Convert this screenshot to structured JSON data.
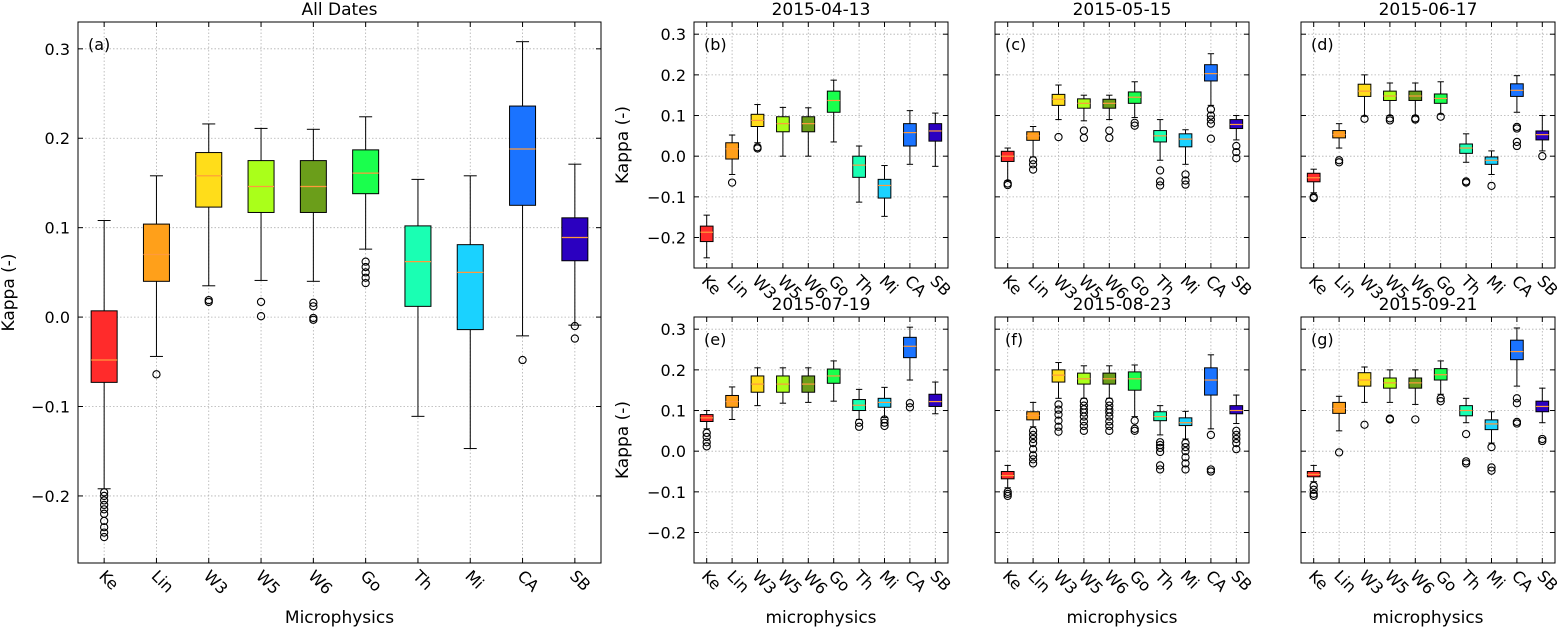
{
  "categories": [
    "Ke",
    "Lin",
    "W3",
    "W5",
    "W6",
    "Go",
    "Th",
    "Mi",
    "CA",
    "SB"
  ],
  "colors": [
    "#ff2b2b",
    "#ffa01a",
    "#ffdd1a",
    "#aaff1a",
    "#6b9e1a",
    "#1aff4d",
    "#1affb3",
    "#1ad2ff",
    "#1a73ff",
    "#2b00c0"
  ],
  "chart_data": [
    {
      "type": "box",
      "panel_label": "(a)",
      "title": "All Dates",
      "xlabel": "Microphysics",
      "ylabel": "Kappa (-)",
      "ylim": [
        -0.275,
        0.33
      ],
      "yticks": [
        "0.3",
        "0.2",
        "0.1",
        "0.0",
        "−0.1",
        "−0.2"
      ],
      "grid": true,
      "boxes": [
        {
          "q1": -0.073,
          "med": -0.048,
          "q3": 0.007,
          "wlo": -0.192,
          "whi": 0.108,
          "out": [
            -0.196,
            -0.2,
            -0.205,
            -0.21,
            -0.215,
            -0.22,
            -0.228,
            -0.235,
            -0.241,
            -0.246
          ]
        },
        {
          "q1": 0.04,
          "med": 0.07,
          "q3": 0.104,
          "wlo": -0.044,
          "whi": 0.158,
          "out": [
            -0.064
          ]
        },
        {
          "q1": 0.123,
          "med": 0.158,
          "q3": 0.184,
          "wlo": 0.035,
          "whi": 0.216,
          "out": [
            0.019,
            0.017
          ]
        },
        {
          "q1": 0.117,
          "med": 0.146,
          "q3": 0.175,
          "wlo": 0.041,
          "whi": 0.211,
          "out": [
            0.017,
            0.001
          ]
        },
        {
          "q1": 0.117,
          "med": 0.146,
          "q3": 0.175,
          "wlo": 0.04,
          "whi": 0.21,
          "out": [
            0.016,
            0.012,
            -0.001,
            -0.003
          ]
        },
        {
          "q1": 0.138,
          "med": 0.161,
          "q3": 0.187,
          "wlo": 0.076,
          "whi": 0.224,
          "out": [
            0.062,
            0.056,
            0.05,
            0.044,
            0.038
          ]
        },
        {
          "q1": 0.012,
          "med": 0.062,
          "q3": 0.102,
          "wlo": -0.111,
          "whi": 0.154,
          "out": []
        },
        {
          "q1": -0.014,
          "med": 0.05,
          "q3": 0.081,
          "wlo": -0.147,
          "whi": 0.158,
          "out": []
        },
        {
          "q1": 0.125,
          "med": 0.188,
          "q3": 0.236,
          "wlo": -0.021,
          "whi": 0.308,
          "out": [
            -0.048
          ]
        },
        {
          "q1": 0.063,
          "med": 0.089,
          "q3": 0.111,
          "wlo": -0.009,
          "whi": 0.171,
          "out": [
            -0.01,
            -0.024
          ]
        }
      ]
    },
    {
      "type": "box",
      "panel_label": "(b)",
      "title": "2015-04-13",
      "xlabel": "",
      "ylabel": "Kappa (-)",
      "ylim": [
        -0.275,
        0.33
      ],
      "yticks": [
        "0.3",
        "0.2",
        "0.1",
        "0.0",
        "−0.1",
        "−0.2"
      ],
      "grid": true,
      "boxes": [
        {
          "q1": -0.21,
          "med": -0.187,
          "q3": -0.172,
          "wlo": -0.25,
          "whi": -0.145,
          "out": []
        },
        {
          "q1": -0.007,
          "med": 0.018,
          "q3": 0.033,
          "wlo": -0.045,
          "whi": 0.052,
          "out": [
            -0.065
          ]
        },
        {
          "q1": 0.073,
          "med": 0.088,
          "q3": 0.103,
          "wlo": 0.033,
          "whi": 0.127,
          "out": [
            0.022,
            0.019
          ]
        },
        {
          "q1": 0.06,
          "med": 0.08,
          "q3": 0.097,
          "wlo": 0.0,
          "whi": 0.12,
          "out": []
        },
        {
          "q1": 0.06,
          "med": 0.08,
          "q3": 0.097,
          "wlo": 0.0,
          "whi": 0.119,
          "out": []
        },
        {
          "q1": 0.108,
          "med": 0.137,
          "q3": 0.16,
          "wlo": 0.035,
          "whi": 0.187,
          "out": []
        },
        {
          "q1": -0.052,
          "med": -0.022,
          "q3": 0.0,
          "wlo": -0.113,
          "whi": 0.025,
          "out": []
        },
        {
          "q1": -0.103,
          "med": -0.072,
          "q3": -0.057,
          "wlo": -0.148,
          "whi": -0.023,
          "out": []
        },
        {
          "q1": 0.025,
          "med": 0.058,
          "q3": 0.08,
          "wlo": -0.02,
          "whi": 0.112,
          "out": []
        },
        {
          "q1": 0.037,
          "med": 0.062,
          "q3": 0.08,
          "wlo": -0.025,
          "whi": 0.106,
          "out": []
        }
      ]
    },
    {
      "type": "box",
      "panel_label": "(c)",
      "title": "2015-05-15",
      "xlabel": "",
      "ylabel": "",
      "ylim": [
        -0.275,
        0.33
      ],
      "yticks": [],
      "grid": true,
      "boxes": [
        {
          "q1": -0.013,
          "med": 0.0,
          "q3": 0.012,
          "wlo": -0.06,
          "whi": 0.02,
          "out": [
            -0.067,
            -0.071
          ]
        },
        {
          "q1": 0.039,
          "med": 0.05,
          "q3": 0.06,
          "wlo": -0.002,
          "whi": 0.073,
          "out": [
            -0.01,
            -0.02,
            -0.033
          ]
        },
        {
          "q1": 0.125,
          "med": 0.14,
          "q3": 0.152,
          "wlo": 0.09,
          "whi": 0.175,
          "out": [
            0.047
          ]
        },
        {
          "q1": 0.118,
          "med": 0.13,
          "q3": 0.141,
          "wlo": 0.087,
          "whi": 0.15,
          "out": [
            0.063,
            0.045
          ]
        },
        {
          "q1": 0.118,
          "med": 0.13,
          "q3": 0.14,
          "wlo": 0.09,
          "whi": 0.15,
          "out": [
            0.063,
            0.045
          ]
        },
        {
          "q1": 0.13,
          "med": 0.145,
          "q3": 0.158,
          "wlo": 0.095,
          "whi": 0.183,
          "out": [
            0.082,
            0.075
          ]
        },
        {
          "q1": 0.035,
          "med": 0.05,
          "q3": 0.063,
          "wlo": -0.01,
          "whi": 0.09,
          "out": [
            -0.035,
            -0.062,
            -0.072
          ]
        },
        {
          "q1": 0.023,
          "med": 0.042,
          "q3": 0.055,
          "wlo": -0.02,
          "whi": 0.065,
          "out": [
            -0.045,
            -0.06,
            -0.07
          ]
        },
        {
          "q1": 0.185,
          "med": 0.203,
          "q3": 0.225,
          "wlo": 0.125,
          "whi": 0.252,
          "out": [
            0.115,
            0.1,
            0.09,
            0.08,
            0.043
          ]
        },
        {
          "q1": 0.068,
          "med": 0.078,
          "q3": 0.09,
          "wlo": 0.04,
          "whi": 0.1,
          "out": [
            0.025,
            0.01,
            -0.005
          ]
        }
      ]
    },
    {
      "type": "box",
      "panel_label": "(d)",
      "title": "2015-06-17",
      "xlabel": "",
      "ylabel": "",
      "ylim": [
        -0.275,
        0.33
      ],
      "yticks": [],
      "grid": true,
      "boxes": [
        {
          "q1": -0.063,
          "med": -0.053,
          "q3": -0.042,
          "wlo": -0.09,
          "whi": -0.032,
          "out": [
            -0.1,
            -0.103
          ]
        },
        {
          "q1": 0.045,
          "med": 0.053,
          "q3": 0.063,
          "wlo": 0.02,
          "whi": 0.08,
          "out": [
            -0.01,
            -0.015
          ]
        },
        {
          "q1": 0.147,
          "med": 0.16,
          "q3": 0.177,
          "wlo": 0.098,
          "whi": 0.2,
          "out": [
            0.092
          ]
        },
        {
          "q1": 0.137,
          "med": 0.148,
          "q3": 0.16,
          "wlo": 0.1,
          "whi": 0.18,
          "out": [
            0.093,
            0.088
          ]
        },
        {
          "q1": 0.137,
          "med": 0.148,
          "q3": 0.16,
          "wlo": 0.1,
          "whi": 0.18,
          "out": [
            0.093,
            0.09
          ]
        },
        {
          "q1": 0.13,
          "med": 0.142,
          "q3": 0.153,
          "wlo": 0.103,
          "whi": 0.183,
          "out": [
            0.097
          ]
        },
        {
          "q1": 0.007,
          "med": 0.02,
          "q3": 0.03,
          "wlo": -0.015,
          "whi": 0.055,
          "out": [
            -0.062,
            -0.065
          ]
        },
        {
          "q1": -0.02,
          "med": -0.01,
          "q3": -0.002,
          "wlo": -0.045,
          "whi": 0.013,
          "out": [
            -0.073
          ]
        },
        {
          "q1": 0.147,
          "med": 0.162,
          "q3": 0.178,
          "wlo": 0.108,
          "whi": 0.198,
          "out": [
            0.072,
            0.068,
            0.035,
            0.025
          ]
        },
        {
          "q1": 0.04,
          "med": 0.053,
          "q3": 0.062,
          "wlo": 0.013,
          "whi": 0.1,
          "out": [
            0.0
          ]
        }
      ]
    },
    {
      "type": "box",
      "panel_label": "(e)",
      "title": "2015-07-19",
      "xlabel": "microphysics",
      "ylabel": "Kappa (-)",
      "ylim": [
        -0.275,
        0.33
      ],
      "yticks": [
        "0.3",
        "0.2",
        "0.1",
        "0.0",
        "−0.1",
        "−0.2"
      ],
      "grid": true,
      "boxes": [
        {
          "q1": 0.073,
          "med": 0.082,
          "q3": 0.09,
          "wlo": 0.055,
          "whi": 0.1,
          "out": [
            0.045,
            0.035,
            0.022,
            0.012
          ]
        },
        {
          "q1": 0.108,
          "med": 0.122,
          "q3": 0.137,
          "wlo": 0.078,
          "whi": 0.158,
          "out": []
        },
        {
          "q1": 0.145,
          "med": 0.165,
          "q3": 0.185,
          "wlo": 0.112,
          "whi": 0.205,
          "out": []
        },
        {
          "q1": 0.145,
          "med": 0.165,
          "q3": 0.185,
          "wlo": 0.118,
          "whi": 0.205,
          "out": []
        },
        {
          "q1": 0.145,
          "med": 0.165,
          "q3": 0.185,
          "wlo": 0.12,
          "whi": 0.205,
          "out": []
        },
        {
          "q1": 0.167,
          "med": 0.185,
          "q3": 0.202,
          "wlo": 0.123,
          "whi": 0.222,
          "out": []
        },
        {
          "q1": 0.1,
          "med": 0.113,
          "q3": 0.127,
          "wlo": 0.078,
          "whi": 0.152,
          "out": [
            0.07,
            0.06
          ]
        },
        {
          "q1": 0.108,
          "med": 0.12,
          "q3": 0.13,
          "wlo": 0.083,
          "whi": 0.157,
          "out": [
            0.078,
            0.07,
            0.062
          ]
        },
        {
          "q1": 0.23,
          "med": 0.258,
          "q3": 0.28,
          "wlo": 0.175,
          "whi": 0.305,
          "out": [
            0.118,
            0.108
          ]
        },
        {
          "q1": 0.11,
          "med": 0.122,
          "q3": 0.14,
          "wlo": 0.092,
          "whi": 0.17,
          "out": []
        }
      ]
    },
    {
      "type": "box",
      "panel_label": "(f)",
      "title": "2015-08-23",
      "xlabel": "microphysics",
      "ylabel": "",
      "ylim": [
        -0.275,
        0.33
      ],
      "yticks": [],
      "grid": true,
      "boxes": [
        {
          "q1": -0.068,
          "med": -0.06,
          "q3": -0.05,
          "wlo": -0.09,
          "whi": -0.035,
          "out": [
            -0.1,
            -0.105,
            -0.11
          ]
        },
        {
          "q1": 0.077,
          "med": 0.088,
          "q3": 0.097,
          "wlo": 0.06,
          "whi": 0.12,
          "out": [
            0.05,
            0.04,
            0.03,
            0.02,
            0.005,
            -0.01,
            -0.02,
            -0.03
          ]
        },
        {
          "q1": 0.17,
          "med": 0.187,
          "q3": 0.2,
          "wlo": 0.13,
          "whi": 0.218,
          "out": [
            0.115,
            0.102,
            0.09,
            0.075,
            0.06,
            0.048
          ]
        },
        {
          "q1": 0.165,
          "med": 0.178,
          "q3": 0.192,
          "wlo": 0.13,
          "whi": 0.21,
          "out": [
            0.122,
            0.112,
            0.103,
            0.095,
            0.085,
            0.073,
            0.062,
            0.05
          ]
        },
        {
          "q1": 0.165,
          "med": 0.178,
          "q3": 0.192,
          "wlo": 0.13,
          "whi": 0.21,
          "out": [
            0.122,
            0.112,
            0.103,
            0.095,
            0.085,
            0.073,
            0.062,
            0.05
          ]
        },
        {
          "q1": 0.15,
          "med": 0.178,
          "q3": 0.195,
          "wlo": 0.085,
          "whi": 0.212,
          "out": [
            0.075,
            0.055,
            0.05
          ]
        },
        {
          "q1": 0.075,
          "med": 0.085,
          "q3": 0.097,
          "wlo": 0.04,
          "whi": 0.112,
          "out": [
            0.022,
            0.015,
            0.008,
            -0.002,
            -0.035,
            -0.045
          ]
        },
        {
          "q1": 0.063,
          "med": 0.07,
          "q3": 0.082,
          "wlo": 0.03,
          "whi": 0.098,
          "out": [
            0.02,
            0.01,
            0.0,
            -0.015,
            -0.03,
            -0.045
          ]
        },
        {
          "q1": 0.138,
          "med": 0.175,
          "q3": 0.205,
          "wlo": 0.055,
          "whi": 0.237,
          "out": [
            0.04,
            -0.045,
            -0.05
          ]
        },
        {
          "q1": 0.092,
          "med": 0.1,
          "q3": 0.112,
          "wlo": 0.068,
          "whi": 0.138,
          "out": [
            0.05,
            0.04,
            0.03,
            0.02,
            0.005
          ]
        }
      ]
    },
    {
      "type": "box",
      "panel_label": "(g)",
      "title": "2015-09-21",
      "xlabel": "microphysics",
      "ylabel": "",
      "ylim": [
        -0.275,
        0.33
      ],
      "yticks": [],
      "grid": true,
      "boxes": [
        {
          "q1": -0.063,
          "med": -0.057,
          "q3": -0.05,
          "wlo": -0.075,
          "whi": -0.035,
          "out": [
            -0.085,
            -0.095,
            -0.105,
            -0.11
          ]
        },
        {
          "q1": 0.093,
          "med": 0.105,
          "q3": 0.12,
          "wlo": 0.05,
          "whi": 0.135,
          "out": [
            -0.003
          ]
        },
        {
          "q1": 0.16,
          "med": 0.175,
          "q3": 0.193,
          "wlo": 0.12,
          "whi": 0.207,
          "out": [
            0.065
          ]
        },
        {
          "q1": 0.155,
          "med": 0.168,
          "q3": 0.18,
          "wlo": 0.12,
          "whi": 0.2,
          "out": [
            0.08,
            0.078
          ]
        },
        {
          "q1": 0.155,
          "med": 0.168,
          "q3": 0.18,
          "wlo": 0.115,
          "whi": 0.2,
          "out": [
            0.078
          ]
        },
        {
          "q1": 0.175,
          "med": 0.188,
          "q3": 0.203,
          "wlo": 0.14,
          "whi": 0.222,
          "out": [
            0.13,
            0.123
          ]
        },
        {
          "q1": 0.087,
          "med": 0.1,
          "q3": 0.112,
          "wlo": 0.07,
          "whi": 0.13,
          "out": [
            0.042,
            -0.025,
            -0.03
          ]
        },
        {
          "q1": 0.053,
          "med": 0.067,
          "q3": 0.077,
          "wlo": 0.02,
          "whi": 0.097,
          "out": [
            0.01,
            -0.04,
            -0.048
          ]
        },
        {
          "q1": 0.225,
          "med": 0.245,
          "q3": 0.273,
          "wlo": 0.16,
          "whi": 0.303,
          "out": [
            0.13,
            0.118,
            0.072,
            0.068
          ]
        },
        {
          "q1": 0.097,
          "med": 0.11,
          "q3": 0.123,
          "wlo": 0.07,
          "whi": 0.155,
          "out": [
            0.03,
            0.025
          ]
        }
      ]
    }
  ]
}
